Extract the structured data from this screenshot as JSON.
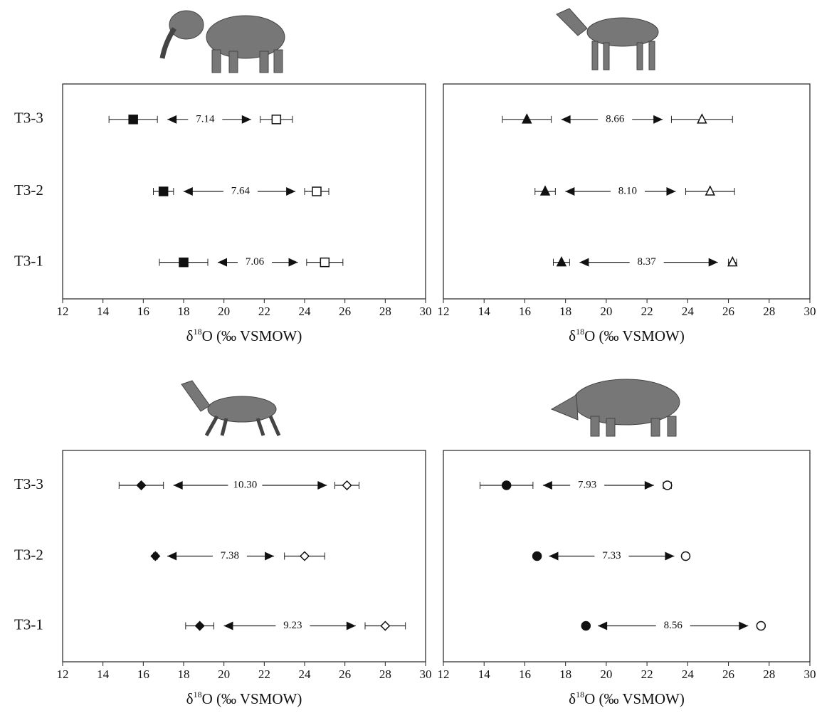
{
  "chart_data": [
    {
      "type": "errorbar",
      "categories": [
        "T3-3",
        "T3-2",
        "T3-1"
      ],
      "series": [
        {
          "marker": "square",
          "fill": "#111111",
          "values": [
            15.5,
            17.0,
            18.0
          ],
          "errors": [
            1.2,
            0.5,
            1.2
          ]
        },
        {
          "marker": "square",
          "fill": "#ffffff",
          "values": [
            22.6,
            24.6,
            25.0
          ],
          "errors": [
            0.8,
            0.6,
            0.9
          ]
        }
      ],
      "differences": [
        7.14,
        7.64,
        7.06
      ],
      "difference_labels": [
        "7.14",
        "7.64",
        "7.06"
      ],
      "xlim": [
        12,
        30
      ],
      "xticks": [
        12,
        14,
        16,
        18,
        20,
        22,
        24,
        26,
        28,
        30
      ],
      "xlabel": {
        "prefix": "δ",
        "sup": "18",
        "suffix": "O (‰ VSMOW)"
      }
    },
    {
      "type": "errorbar",
      "series": [
        {
          "marker": "triangle",
          "fill": "#111111",
          "values": [
            16.1,
            17.0,
            17.8
          ],
          "errors": [
            1.2,
            0.5,
            0.4
          ]
        },
        {
          "marker": "triangle",
          "fill": "#ffffff",
          "values": [
            24.7,
            25.1,
            26.2
          ],
          "errors": [
            1.5,
            1.2,
            0.2
          ]
        }
      ],
      "differences": [
        8.66,
        8.1,
        8.37
      ],
      "difference_labels": [
        "8.66",
        "8.10",
        "8.37"
      ],
      "xlim": [
        12,
        30
      ],
      "xticks": [
        12,
        14,
        16,
        18,
        20,
        22,
        24,
        26,
        28,
        30
      ],
      "xlabel": {
        "prefix": "δ",
        "sup": "18",
        "suffix": "O (‰ VSMOW)"
      }
    },
    {
      "type": "errorbar",
      "categories": [
        "T3-3",
        "T3-2",
        "T3-1"
      ],
      "series": [
        {
          "marker": "diamond",
          "fill": "#111111",
          "values": [
            15.9,
            16.6,
            18.8
          ],
          "errors": [
            1.1,
            0.1,
            0.7
          ]
        },
        {
          "marker": "diamond",
          "fill": "#ffffff",
          "values": [
            26.1,
            24.0,
            28.0
          ],
          "errors": [
            0.6,
            1.0,
            1.0
          ]
        }
      ],
      "differences": [
        10.3,
        7.38,
        9.23
      ],
      "difference_labels": [
        "10.30",
        "7.38",
        "9.23"
      ],
      "xlim": [
        12,
        30
      ],
      "xticks": [
        12,
        14,
        16,
        18,
        20,
        22,
        24,
        26,
        28,
        30
      ],
      "xlabel": {
        "prefix": "δ",
        "sup": "18",
        "suffix": "O (‰ VSMOW)"
      }
    },
    {
      "type": "errorbar",
      "series": [
        {
          "marker": "circle",
          "fill": "#111111",
          "values": [
            15.1,
            16.6,
            19.0
          ],
          "errors": [
            1.3,
            0.1,
            0.1
          ]
        },
        {
          "marker": "circle",
          "fill": "#ffffff",
          "values": [
            23.0,
            23.9,
            27.6
          ],
          "errors": [
            0.2,
            0.1,
            0.1
          ]
        }
      ],
      "differences": [
        7.93,
        7.33,
        8.56
      ],
      "difference_labels": [
        "7.93",
        "7.33",
        "8.56"
      ],
      "xlim": [
        12,
        30
      ],
      "xticks": [
        12,
        14,
        16,
        18,
        20,
        22,
        24,
        26,
        28,
        30
      ],
      "xlabel": {
        "prefix": "δ",
        "sup": "18",
        "suffix": "O (‰ VSMOW)"
      }
    }
  ]
}
